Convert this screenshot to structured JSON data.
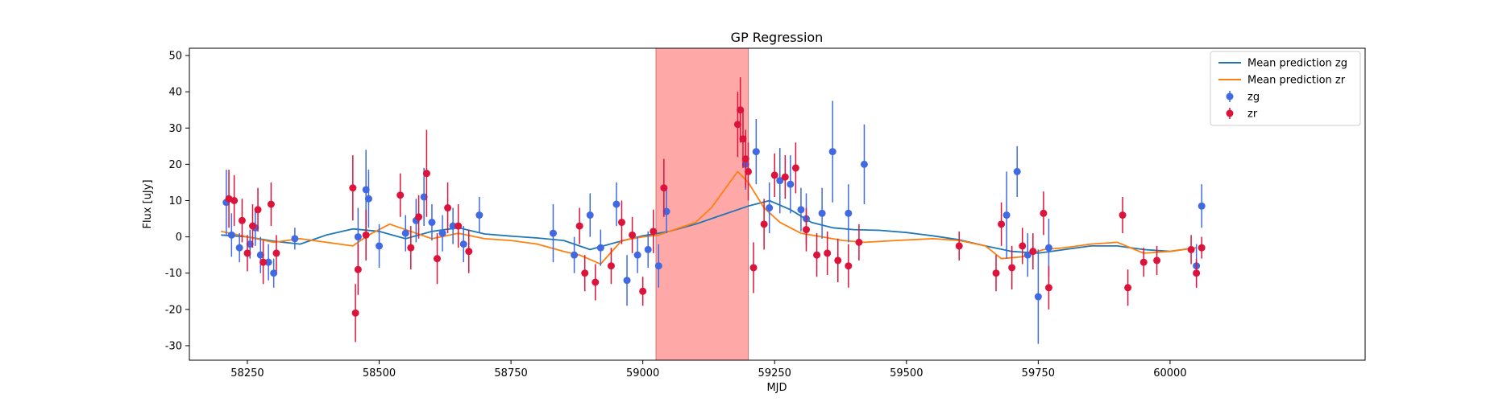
{
  "chart_data": {
    "type": "scatter",
    "title": "GP Regression",
    "xlabel": "MJD",
    "ylabel": "Flux [uJy]",
    "xlim": [
      58140,
      60370
    ],
    "ylim": [
      -34,
      52
    ],
    "x_ticks": [
      58250,
      58500,
      58750,
      59000,
      59250,
      59500,
      59750,
      60000
    ],
    "y_ticks": [
      -30,
      -20,
      -10,
      0,
      10,
      20,
      30,
      40,
      50
    ],
    "grid": false,
    "legend_position": "top-right",
    "highlight_region": {
      "x_start": 59025,
      "x_end": 59200,
      "color": "#ff9999"
    },
    "series": [
      {
        "name": "Mean prediction zg",
        "kind": "line",
        "color": "#1f77b4",
        "x": [
          58200,
          58250,
          58300,
          58350,
          58400,
          58450,
          58500,
          58550,
          58600,
          58650,
          58700,
          58750,
          58800,
          58850,
          58900,
          58950,
          59000,
          59050,
          59100,
          59150,
          59200,
          59240,
          59280,
          59320,
          59360,
          59400,
          59450,
          59500,
          59550,
          59600,
          59650,
          59700,
          59750,
          59800,
          59850,
          59900,
          59950,
          60000,
          60050
        ],
        "y": [
          0.5,
          0.0,
          -1.2,
          -2.0,
          0.5,
          2.2,
          1.5,
          -0.5,
          1.5,
          2.5,
          0.8,
          0.2,
          -0.3,
          -1.0,
          -3.5,
          -1.5,
          0.3,
          1.5,
          3.5,
          6.0,
          8.5,
          10.0,
          7.5,
          4.0,
          2.5,
          2.0,
          1.8,
          1.2,
          0.3,
          -0.8,
          -2.5,
          -4.0,
          -4.5,
          -3.5,
          -2.5,
          -2.5,
          -3.5,
          -4.0,
          -3.0
        ]
      },
      {
        "name": "Mean prediction zr",
        "kind": "line",
        "color": "#ff7f0e",
        "x": [
          58200,
          58250,
          58300,
          58350,
          58400,
          58450,
          58480,
          58520,
          58560,
          58600,
          58650,
          58700,
          58750,
          58800,
          58850,
          58880,
          58920,
          58960,
          59000,
          59030,
          59060,
          59100,
          59130,
          59160,
          59180,
          59200,
          59230,
          59260,
          59300,
          59340,
          59380,
          59420,
          59480,
          59550,
          59600,
          59650,
          59680,
          59720,
          59760,
          59800,
          59850,
          59900,
          59950,
          60000,
          60050
        ],
        "y": [
          1.5,
          0.0,
          -1.5,
          -0.5,
          -1.5,
          -2.5,
          0.5,
          3.5,
          1.5,
          -0.5,
          1.0,
          -0.5,
          -1.0,
          -2.0,
          -4.0,
          -5.0,
          -7.5,
          -1.0,
          0.0,
          0.5,
          2.0,
          4.0,
          8.0,
          14.0,
          18.0,
          15.0,
          8.0,
          4.0,
          1.0,
          0.0,
          -1.0,
          -1.5,
          -1.0,
          -0.5,
          -1.0,
          -2.5,
          -6.0,
          -5.5,
          -3.5,
          -3.0,
          -2.0,
          -1.5,
          -4.5,
          -4.0,
          -3.0
        ]
      },
      {
        "name": "zg",
        "kind": "errorbar",
        "color": "#4169e1",
        "x": [
          58210,
          58220,
          58235,
          58255,
          58265,
          58275,
          58290,
          58300,
          58340,
          58460,
          58475,
          58480,
          58500,
          58550,
          58570,
          58585,
          58600,
          58620,
          58640,
          58660,
          58690,
          58830,
          58870,
          58900,
          58920,
          58950,
          58970,
          58990,
          59010,
          59030,
          59045,
          59195,
          59215,
          59240,
          59260,
          59280,
          59300,
          59310,
          59340,
          59360,
          59390,
          59420,
          59690,
          59710,
          59730,
          59750,
          59770,
          60050,
          60060
        ],
        "y": [
          9.5,
          0.5,
          -3.0,
          -2.0,
          2.5,
          -5.0,
          -7.0,
          -10.0,
          -0.5,
          0.0,
          13.0,
          10.5,
          -2.5,
          1.0,
          4.5,
          11.0,
          4.0,
          1.0,
          3.0,
          -2.0,
          6.0,
          1.0,
          -5.0,
          6.0,
          -3.0,
          9.0,
          -12.0,
          -5.0,
          -3.5,
          -8.0,
          7.0,
          20.0,
          23.5,
          8.0,
          15.5,
          14.5,
          7.5,
          5.0,
          6.5,
          23.5,
          6.5,
          20.0,
          6.0,
          18.0,
          -5.0,
          -16.5,
          -3.0,
          -8.0,
          8.5
        ],
        "err": [
          9,
          6,
          4,
          4,
          5,
          5,
          5,
          4,
          3,
          8,
          11,
          8,
          6,
          5,
          6,
          8,
          5,
          5,
          5,
          5,
          5,
          8,
          5,
          6,
          5,
          6,
          7,
          5,
          5,
          6,
          6,
          7,
          9,
          7,
          9,
          8,
          6,
          7,
          7,
          14,
          8,
          11,
          12,
          7,
          6,
          13,
          8,
          6,
          6
        ]
      },
      {
        "name": "zr",
        "kind": "errorbar",
        "color": "#dc143c",
        "x": [
          58215,
          58225,
          58240,
          58250,
          58260,
          58270,
          58280,
          58295,
          58305,
          58450,
          58455,
          58460,
          58475,
          58540,
          58560,
          58575,
          58590,
          58610,
          58630,
          58650,
          58670,
          58880,
          58890,
          58910,
          58940,
          58960,
          58980,
          59000,
          59020,
          59040,
          59180,
          59185,
          59190,
          59195,
          59200,
          59210,
          59230,
          59250,
          59270,
          59290,
          59310,
          59330,
          59350,
          59370,
          59390,
          59410,
          59600,
          59670,
          59680,
          59700,
          59720,
          59740,
          59760,
          59770,
          59910,
          59920,
          59950,
          59975,
          60040,
          60050,
          60060
        ],
        "y": [
          10.5,
          10.0,
          4.5,
          -4.5,
          3.0,
          7.5,
          -7.0,
          9.0,
          -4.5,
          13.5,
          -21.0,
          -9.0,
          0.5,
          11.5,
          -3.0,
          5.5,
          17.5,
          -6.0,
          8.0,
          3.0,
          -4.0,
          3.0,
          -10.0,
          -12.5,
          -8.0,
          4.0,
          0.5,
          -15.0,
          1.5,
          13.5,
          31.0,
          35.0,
          27.0,
          21.5,
          18.0,
          -8.5,
          3.5,
          17.0,
          16.5,
          19.0,
          2.0,
          -5.0,
          -4.5,
          -6.5,
          -8.0,
          -1.5,
          -2.5,
          -10.0,
          3.5,
          -8.5,
          -2.5,
          -4.0,
          6.5,
          -14.0,
          6.0,
          -14.0,
          -7.0,
          -6.5,
          -3.5,
          -10.0,
          -3.0
        ],
        "err": [
          8,
          7,
          6,
          5,
          6,
          6,
          6,
          6,
          5,
          9,
          8,
          7,
          7,
          6,
          6,
          6,
          12,
          7,
          7,
          6,
          6,
          5,
          5,
          5,
          5,
          6,
          5,
          4,
          6,
          8,
          9,
          9,
          8,
          8,
          8,
          7,
          7,
          6,
          6,
          7,
          6,
          6,
          6,
          6,
          6,
          5,
          4,
          5,
          6,
          6,
          5,
          5,
          6,
          6,
          5,
          5,
          4,
          4,
          4,
          4,
          3
        ]
      }
    ]
  }
}
